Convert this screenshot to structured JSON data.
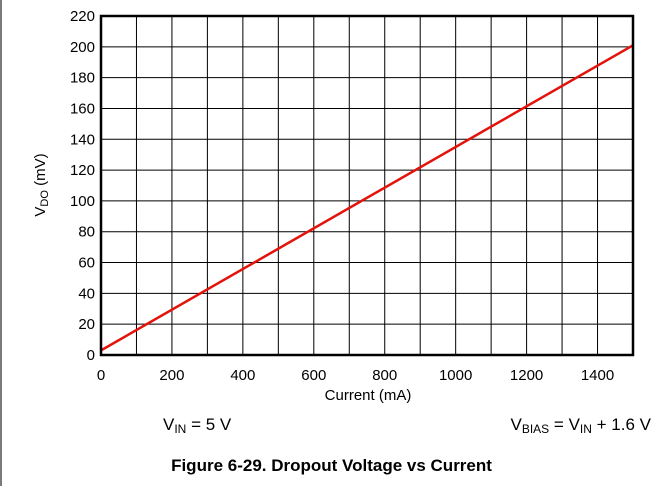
{
  "chart_data": {
    "type": "line",
    "xlabel": "Current (mA)",
    "ylabel": {
      "main": "V",
      "sub": "DO",
      "tail": " (mV)"
    },
    "xlim": [
      0,
      1500
    ],
    "ylim": [
      0,
      220
    ],
    "x_ticks": [
      0,
      200,
      400,
      600,
      800,
      1000,
      1200,
      1400
    ],
    "y_ticks": [
      0,
      20,
      40,
      60,
      80,
      100,
      120,
      140,
      160,
      180,
      200,
      220
    ],
    "x_gridlines": [
      100,
      200,
      300,
      400,
      500,
      600,
      700,
      800,
      900,
      1000,
      1100,
      1200,
      1300,
      1400
    ],
    "grid": true,
    "series": [
      {
        "color": "#e3120b",
        "x": [
          0,
          1500
        ],
        "y": [
          3,
          201
        ]
      }
    ]
  },
  "conditions": {
    "vin": {
      "main": "V",
      "sub": "IN",
      "tail": " = 5 V"
    },
    "vbias": {
      "main": "V",
      "sub": "BIAS",
      "mid": " = V",
      "sub2": "IN",
      "tail": " + 1.6 V"
    }
  },
  "caption": "Figure 6-29. Dropout Voltage vs Current"
}
